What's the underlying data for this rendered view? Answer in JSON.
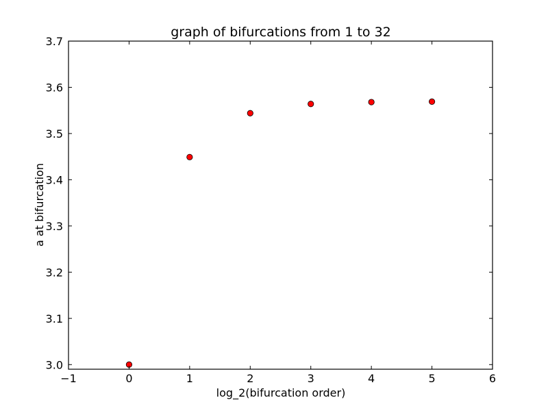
{
  "chart_data": {
    "type": "scatter",
    "title": "graph of bifurcations from 1 to 32",
    "xlabel": "log_2(bifurcation order)",
    "ylabel": "a at bifurcation",
    "xlim": [
      -1,
      6
    ],
    "ylim": [
      2.99,
      3.7
    ],
    "x_ticks": [
      -1,
      0,
      1,
      2,
      3,
      4,
      5,
      6
    ],
    "x_tick_labels": [
      "−1",
      "0",
      "1",
      "2",
      "3",
      "4",
      "5",
      "6"
    ],
    "y_ticks": [
      3.0,
      3.1,
      3.2,
      3.3,
      3.4,
      3.5,
      3.6,
      3.7
    ],
    "y_tick_labels": [
      "3.0",
      "3.1",
      "3.2",
      "3.3",
      "3.4",
      "3.5",
      "3.6",
      "3.7"
    ],
    "grid": false,
    "marker": "circle",
    "marker_color": "#ff0000",
    "marker_edge_color": "#000000",
    "series": [
      {
        "x": [
          0,
          1,
          2,
          3,
          4,
          5
        ],
        "y": [
          3.0,
          3.449,
          3.544,
          3.564,
          3.568,
          3.569
        ]
      }
    ]
  }
}
